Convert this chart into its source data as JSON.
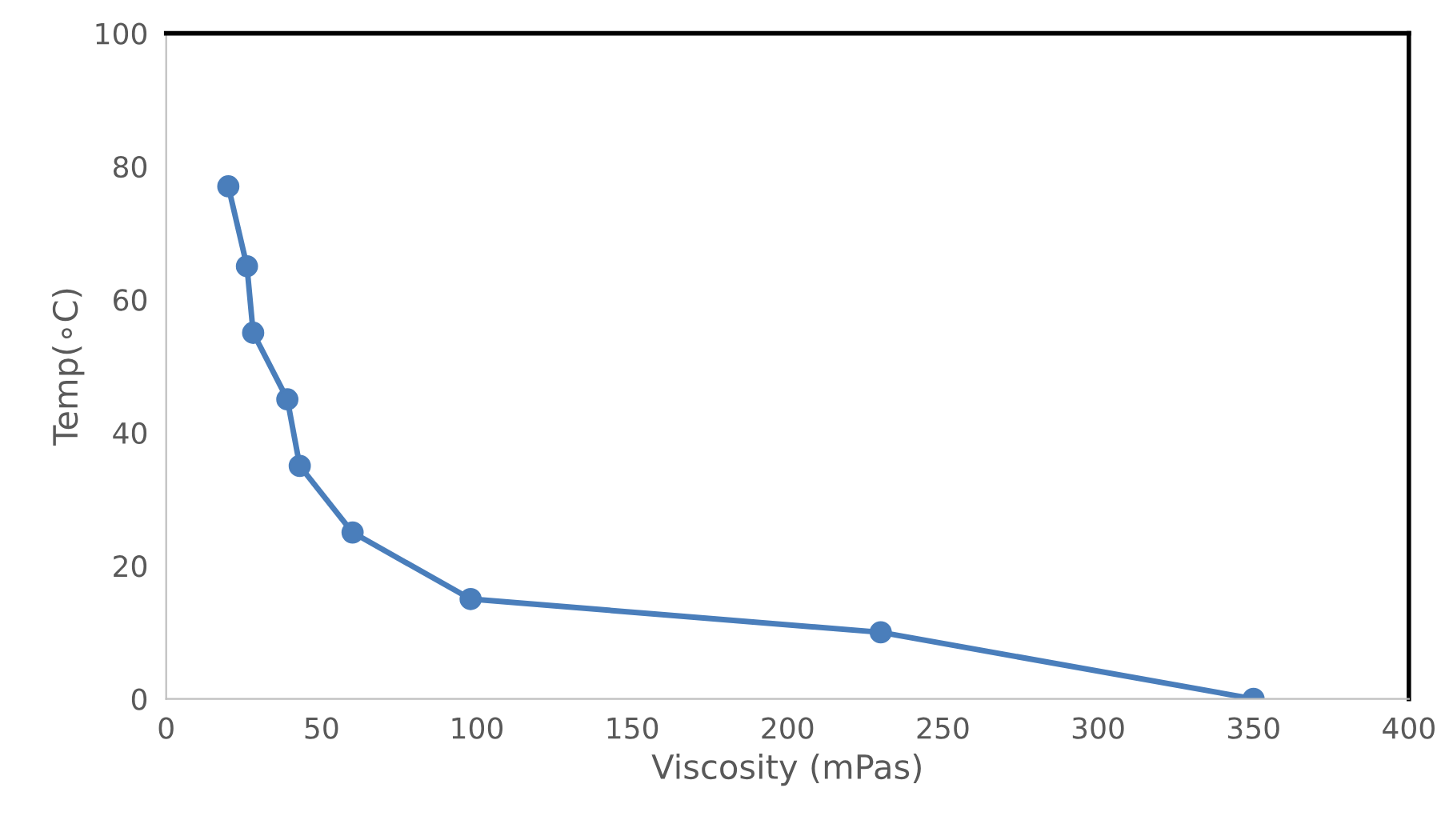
{
  "chart_data": {
    "type": "line",
    "xlabel": "Viscosity (mPas)",
    "ylabel": "Temp(∘C)",
    "series": [
      {
        "color": "#4a7ebb",
        "x": [
          20,
          26,
          28,
          39,
          43,
          60,
          98,
          230,
          350
        ],
        "values": [
          77,
          65,
          55,
          45,
          35,
          25,
          15,
          10,
          0
        ]
      }
    ],
    "xlim": [
      0,
      400
    ],
    "xticks": [
      0,
      50,
      100,
      150,
      200,
      250,
      300,
      350,
      400
    ],
    "ylim": [
      0,
      100
    ],
    "yticks": [
      0,
      20,
      40,
      60,
      80,
      100
    ],
    "grid": false,
    "legend": false,
    "marker": "circle",
    "line_style": "solid"
  }
}
